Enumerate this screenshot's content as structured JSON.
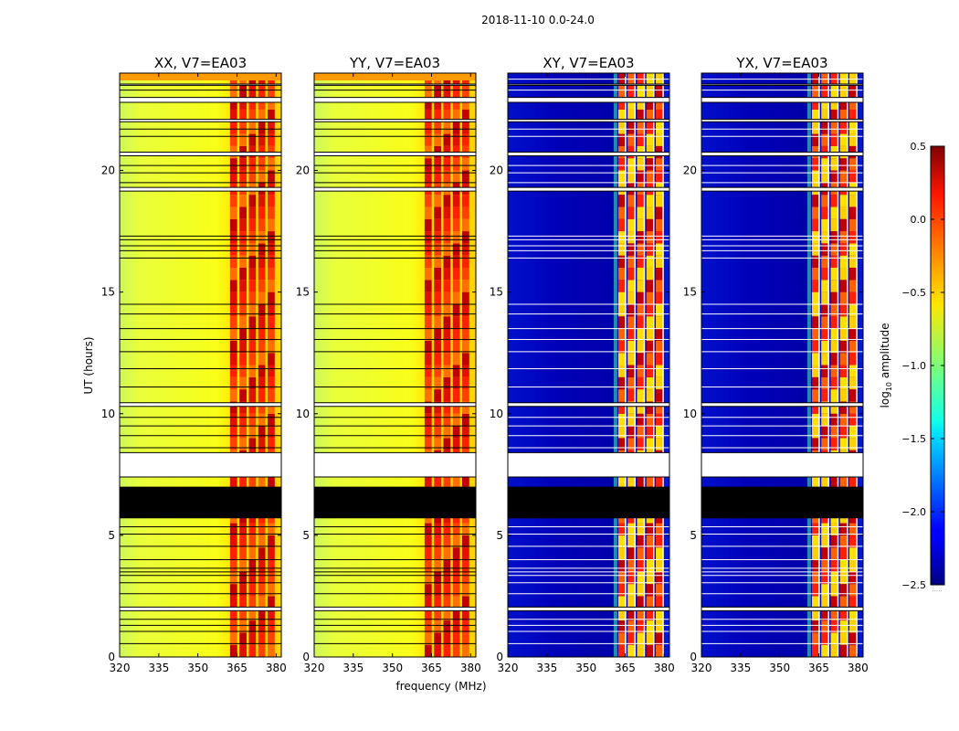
{
  "figure": {
    "title": "2018-11-10 0.0-24.0",
    "xlabel": "frequency (MHz)",
    "ylabel": "UT (hours)"
  },
  "colorbar": {
    "label_base": "log",
    "label_sub": "10",
    "label_rest": " amplitude",
    "ticks": [
      0.5,
      0.0,
      -0.5,
      -1.0,
      -1.5,
      -2.0,
      -2.5
    ],
    "tick_labels": [
      "0.5",
      "0.0",
      "−0.5",
      "−1.0",
      "−1.5",
      "−2.0",
      "−2.5"
    ],
    "vmin": -2.5,
    "vmax": 0.5,
    "colormap": "jet",
    "under_label": "....."
  },
  "chart_data": {
    "type": "heatmap",
    "x_range": [
      320,
      382
    ],
    "y_range": [
      0,
      24
    ],
    "x_ticks": [
      320,
      335,
      350,
      365,
      380
    ],
    "y_ticks": [
      0,
      5,
      10,
      15,
      20
    ],
    "bright_band_mhz": [
      362,
      380
    ],
    "flagged_black_hours": [
      [
        5.7,
        7.0
      ]
    ],
    "gap_hours": [
      [
        0.0,
        0.0
      ],
      [
        1.9,
        2.05
      ],
      [
        7.4,
        8.4
      ],
      [
        10.3,
        10.45
      ],
      [
        19.15,
        19.3
      ],
      [
        20.6,
        20.75
      ],
      [
        22.0,
        22.1
      ],
      [
        22.8,
        23.0
      ],
      [
        23.5,
        23.55
      ]
    ],
    "line_hours": [
      0.55,
      1.05,
      1.3,
      1.55,
      2.6,
      3.05,
      3.35,
      3.5,
      3.65,
      4.0,
      4.55,
      5.05,
      5.35,
      8.6,
      9.1,
      9.5,
      9.85,
      11.1,
      11.85,
      12.55,
      13.05,
      13.5,
      14.1,
      14.5,
      16.4,
      16.7,
      16.9,
      17.15,
      17.3,
      19.5,
      19.9,
      20.2,
      21.4,
      21.7,
      23.3,
      23.75
    ],
    "panels": [
      {
        "title": "XX, V7=EA03",
        "mode": "parallel",
        "series_level": -0.6
      },
      {
        "title": "YY, V7=EA03",
        "mode": "parallel",
        "series_level": -0.6
      },
      {
        "title": "XY, V7=EA03",
        "mode": "cross",
        "series_level": -2.3
      },
      {
        "title": "YX, V7=EA03",
        "mode": "cross",
        "series_level": -2.3
      }
    ]
  }
}
